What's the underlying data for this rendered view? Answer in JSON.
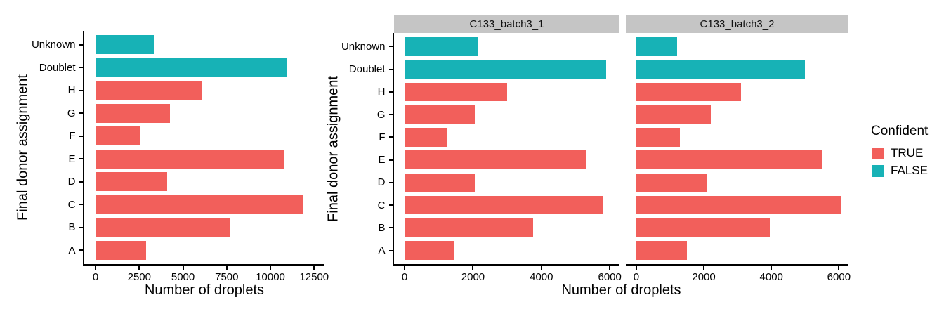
{
  "shared": {
    "y_axis_title": "Final donor assignment",
    "x_axis_title": "Number of droplets",
    "categories_top_to_bottom": [
      "Unknown",
      "Doublet",
      "H",
      "G",
      "F",
      "E",
      "D",
      "C",
      "B",
      "A"
    ],
    "confident_by_category": [
      "FALSE",
      "FALSE",
      "TRUE",
      "TRUE",
      "TRUE",
      "TRUE",
      "TRUE",
      "TRUE",
      "TRUE",
      "TRUE"
    ]
  },
  "legend": {
    "title": "Confident",
    "items": [
      {
        "label": "TRUE",
        "color": "#F25F5B"
      },
      {
        "label": "FALSE",
        "color": "#17B2B6"
      }
    ]
  },
  "colors": {
    "confident_true": "#F25F5B",
    "confident_false": "#17B2B6",
    "strip_background": "#C5C5C5",
    "axis": "#000000"
  },
  "chart_data": [
    {
      "type": "bar",
      "orientation": "horizontal",
      "facet_label": "",
      "xlabel": "Number of droplets",
      "ylabel": "Final donor assignment",
      "x_ticks": [
        0,
        2500,
        5000,
        7500,
        10000,
        12500
      ],
      "xlim": [
        0,
        12500
      ],
      "categories": [
        "Unknown",
        "Doublet",
        "H",
        "G",
        "F",
        "E",
        "D",
        "C",
        "B",
        "A"
      ],
      "values": [
        3350,
        10950,
        6100,
        4250,
        2550,
        10800,
        4100,
        11850,
        7700,
        2900
      ]
    },
    {
      "type": "bar",
      "orientation": "horizontal",
      "facet_label": "C133_batch3_1",
      "xlabel": "Number of droplets",
      "ylabel": "Final donor assignment",
      "x_ticks": [
        0,
        2000,
        4000,
        6000
      ],
      "xlim": [
        0,
        6000
      ],
      "categories": [
        "Unknown",
        "Doublet",
        "H",
        "G",
        "F",
        "E",
        "D",
        "C",
        "B",
        "A"
      ],
      "values": [
        2150,
        5900,
        3000,
        2050,
        1250,
        5300,
        2050,
        5800,
        3750,
        1450
      ]
    },
    {
      "type": "bar",
      "orientation": "horizontal",
      "facet_label": "C133_batch3_2",
      "xlabel": "Number of droplets",
      "ylabel": "Final donor assignment",
      "x_ticks": [
        0,
        2000,
        4000,
        6000
      ],
      "xlim": [
        0,
        6000
      ],
      "categories": [
        "Unknown",
        "Doublet",
        "H",
        "G",
        "F",
        "E",
        "D",
        "C",
        "B",
        "A"
      ],
      "values": [
        1200,
        5000,
        3100,
        2200,
        1300,
        5500,
        2100,
        6050,
        3950,
        1500
      ]
    }
  ]
}
